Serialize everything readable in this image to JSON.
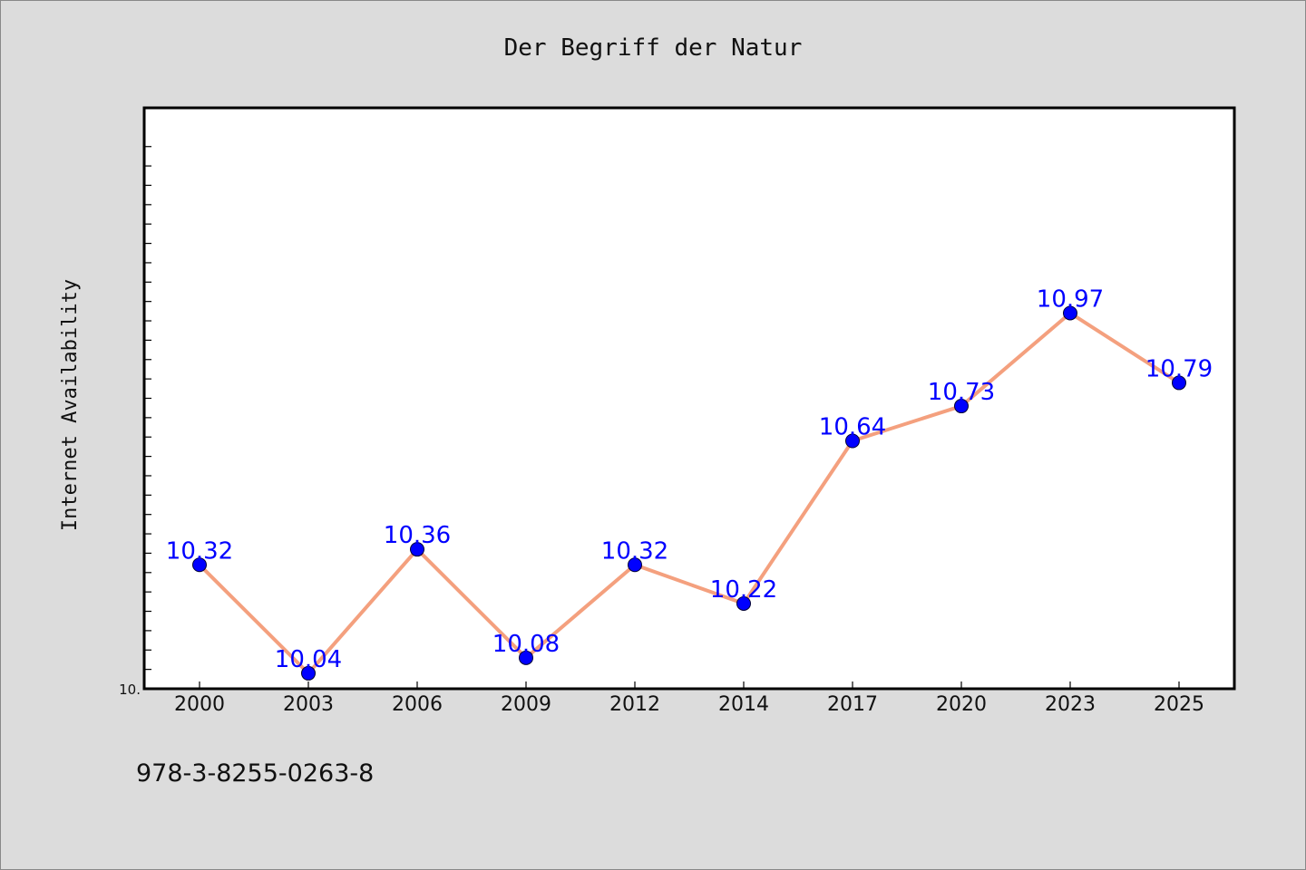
{
  "chart_data": {
    "type": "line",
    "title": "Der Begriff der Natur",
    "xlabel": "",
    "ylabel": "Internet Availability",
    "categories": [
      "2000",
      "2003",
      "2006",
      "2009",
      "2012",
      "2014",
      "2017",
      "2020",
      "2023",
      "2025"
    ],
    "series": [
      {
        "values": [
          10.32,
          10.04,
          10.36,
          10.08,
          10.32,
          10.22,
          10.64,
          10.73,
          10.97,
          10.79
        ],
        "data_labels": [
          "10.32",
          "10.04",
          "10.36",
          "10.08",
          "10.32",
          "10.22",
          "10.64",
          "10.73",
          "10.97",
          "10.79"
        ]
      }
    ],
    "ylim": [
      10.0,
      11.5
    ],
    "ytick_labels": [
      "10."
    ],
    "grid": false,
    "legend": "none",
    "colors": {
      "line": "#f4a07e",
      "marker": "#0000ff",
      "data_label": "#0000ff",
      "background": "#dcdcdc",
      "plot_background": "#ffffff"
    }
  },
  "footnote": "978-3-8255-0263-8"
}
